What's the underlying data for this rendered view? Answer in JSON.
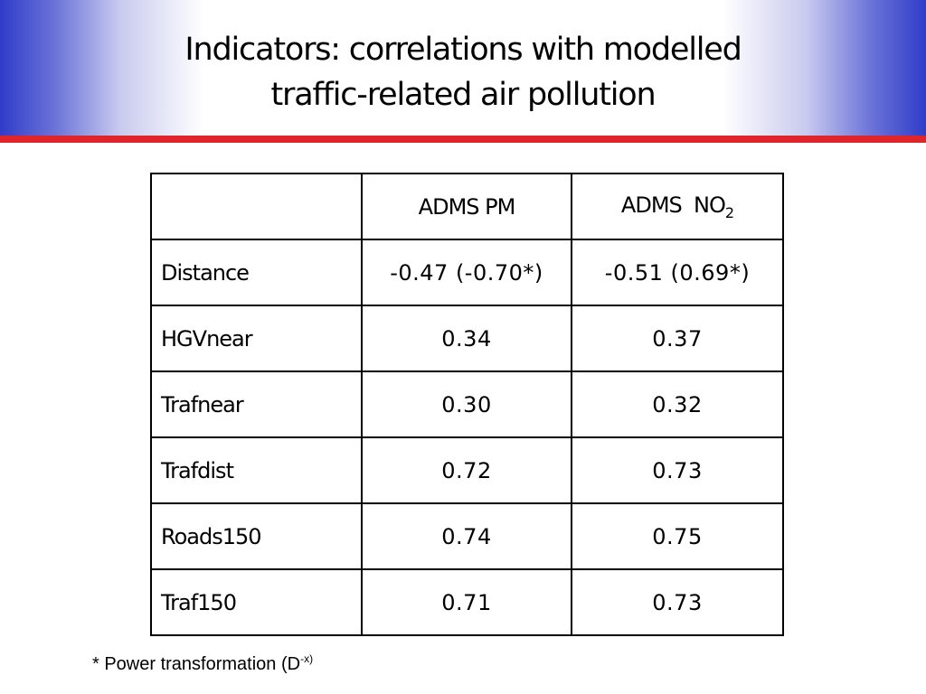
{
  "slide": {
    "title_line1": "Indicators: correlations with modelled",
    "title_line2": "traffic-related air pollution",
    "accent_colors": {
      "header_gradient_edge": "#2f3cc8",
      "rule_red": "#e0242b"
    }
  },
  "table": {
    "corner": "",
    "col1": "ADMS PM",
    "col2_prefix": "ADMS  NO",
    "col2_sub": "2",
    "rows": [
      {
        "label": "Distance",
        "pm": "-0.47 (-0.70*)",
        "no2": "-0.51 (0.69*)"
      },
      {
        "label": "HGVnear",
        "pm": "0.34",
        "no2": "0.37"
      },
      {
        "label": "Trafnear",
        "pm": "0.30",
        "no2": "0.32"
      },
      {
        "label": "Trafdist",
        "pm": "0.72",
        "no2": "0.73"
      },
      {
        "label": "Roads150",
        "pm": "0.74",
        "no2": "0.75"
      },
      {
        "label": "Traf150",
        "pm": "0.71",
        "no2": "0.73"
      }
    ]
  },
  "footnote": {
    "text": "* Power transformation (D",
    "sup": "-x)",
    "close": ")"
  }
}
